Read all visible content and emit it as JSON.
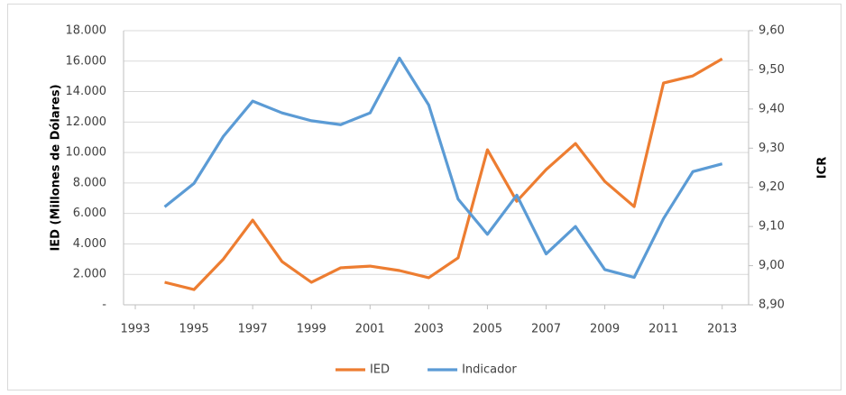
{
  "chart_data": {
    "type": "line",
    "y_label": "IED (Millones de Dólares)",
    "y2_label": "ICR",
    "x": [
      1994,
      1995,
      1996,
      1997,
      1998,
      1999,
      2000,
      2001,
      2002,
      2003,
      2004,
      2005,
      2006,
      2007,
      2008,
      2009,
      2010,
      2011,
      2012,
      2013
    ],
    "xlim": [
      1992.6,
      2013.9
    ],
    "xticks": [
      1993,
      1995,
      1997,
      1999,
      2001,
      2003,
      2005,
      2007,
      2009,
      2011,
      2013
    ],
    "ylim": [
      0,
      18000
    ],
    "yticks": [
      {
        "value": 0,
        "label": "-"
      },
      {
        "value": 2000,
        "label": "2.000"
      },
      {
        "value": 4000,
        "label": "4.000"
      },
      {
        "value": 6000,
        "label": "6.000"
      },
      {
        "value": 8000,
        "label": "8.000"
      },
      {
        "value": 10000,
        "label": "10.000"
      },
      {
        "value": 12000,
        "label": "12.000"
      },
      {
        "value": 14000,
        "label": "14.000"
      },
      {
        "value": 16000,
        "label": "16.000"
      },
      {
        "value": 18000,
        "label": "18.000"
      }
    ],
    "y2lim": [
      8.9,
      9.6
    ],
    "y2ticks": [
      {
        "value": 8.9,
        "label": "8,90"
      },
      {
        "value": 9.0,
        "label": "9,00"
      },
      {
        "value": 9.1,
        "label": "9,10"
      },
      {
        "value": 9.2,
        "label": "9,20"
      },
      {
        "value": 9.3,
        "label": "9,30"
      },
      {
        "value": 9.4,
        "label": "9,40"
      },
      {
        "value": 9.5,
        "label": "9,50"
      },
      {
        "value": 9.6,
        "label": "9,60"
      }
    ],
    "grid": true,
    "legend": "bottom",
    "series": [
      {
        "name": "IED",
        "color": "#ed7d31",
        "values": [
          1480,
          1000,
          3000,
          5560,
          2840,
          1480,
          2430,
          2540,
          2250,
          1780,
          3080,
          10180,
          6800,
          8880,
          10590,
          8100,
          6450,
          14560,
          15030,
          16150
        ]
      },
      {
        "name": "Indicador",
        "color": "#5b9bd5",
        "axis": "y2",
        "values": [
          9.15,
          9.21,
          9.33,
          9.42,
          9.39,
          9.37,
          9.36,
          9.39,
          9.53,
          9.41,
          9.17,
          9.08,
          9.18,
          9.03,
          9.1,
          8.99,
          8.97,
          9.12,
          9.24,
          9.26
        ]
      }
    ]
  }
}
